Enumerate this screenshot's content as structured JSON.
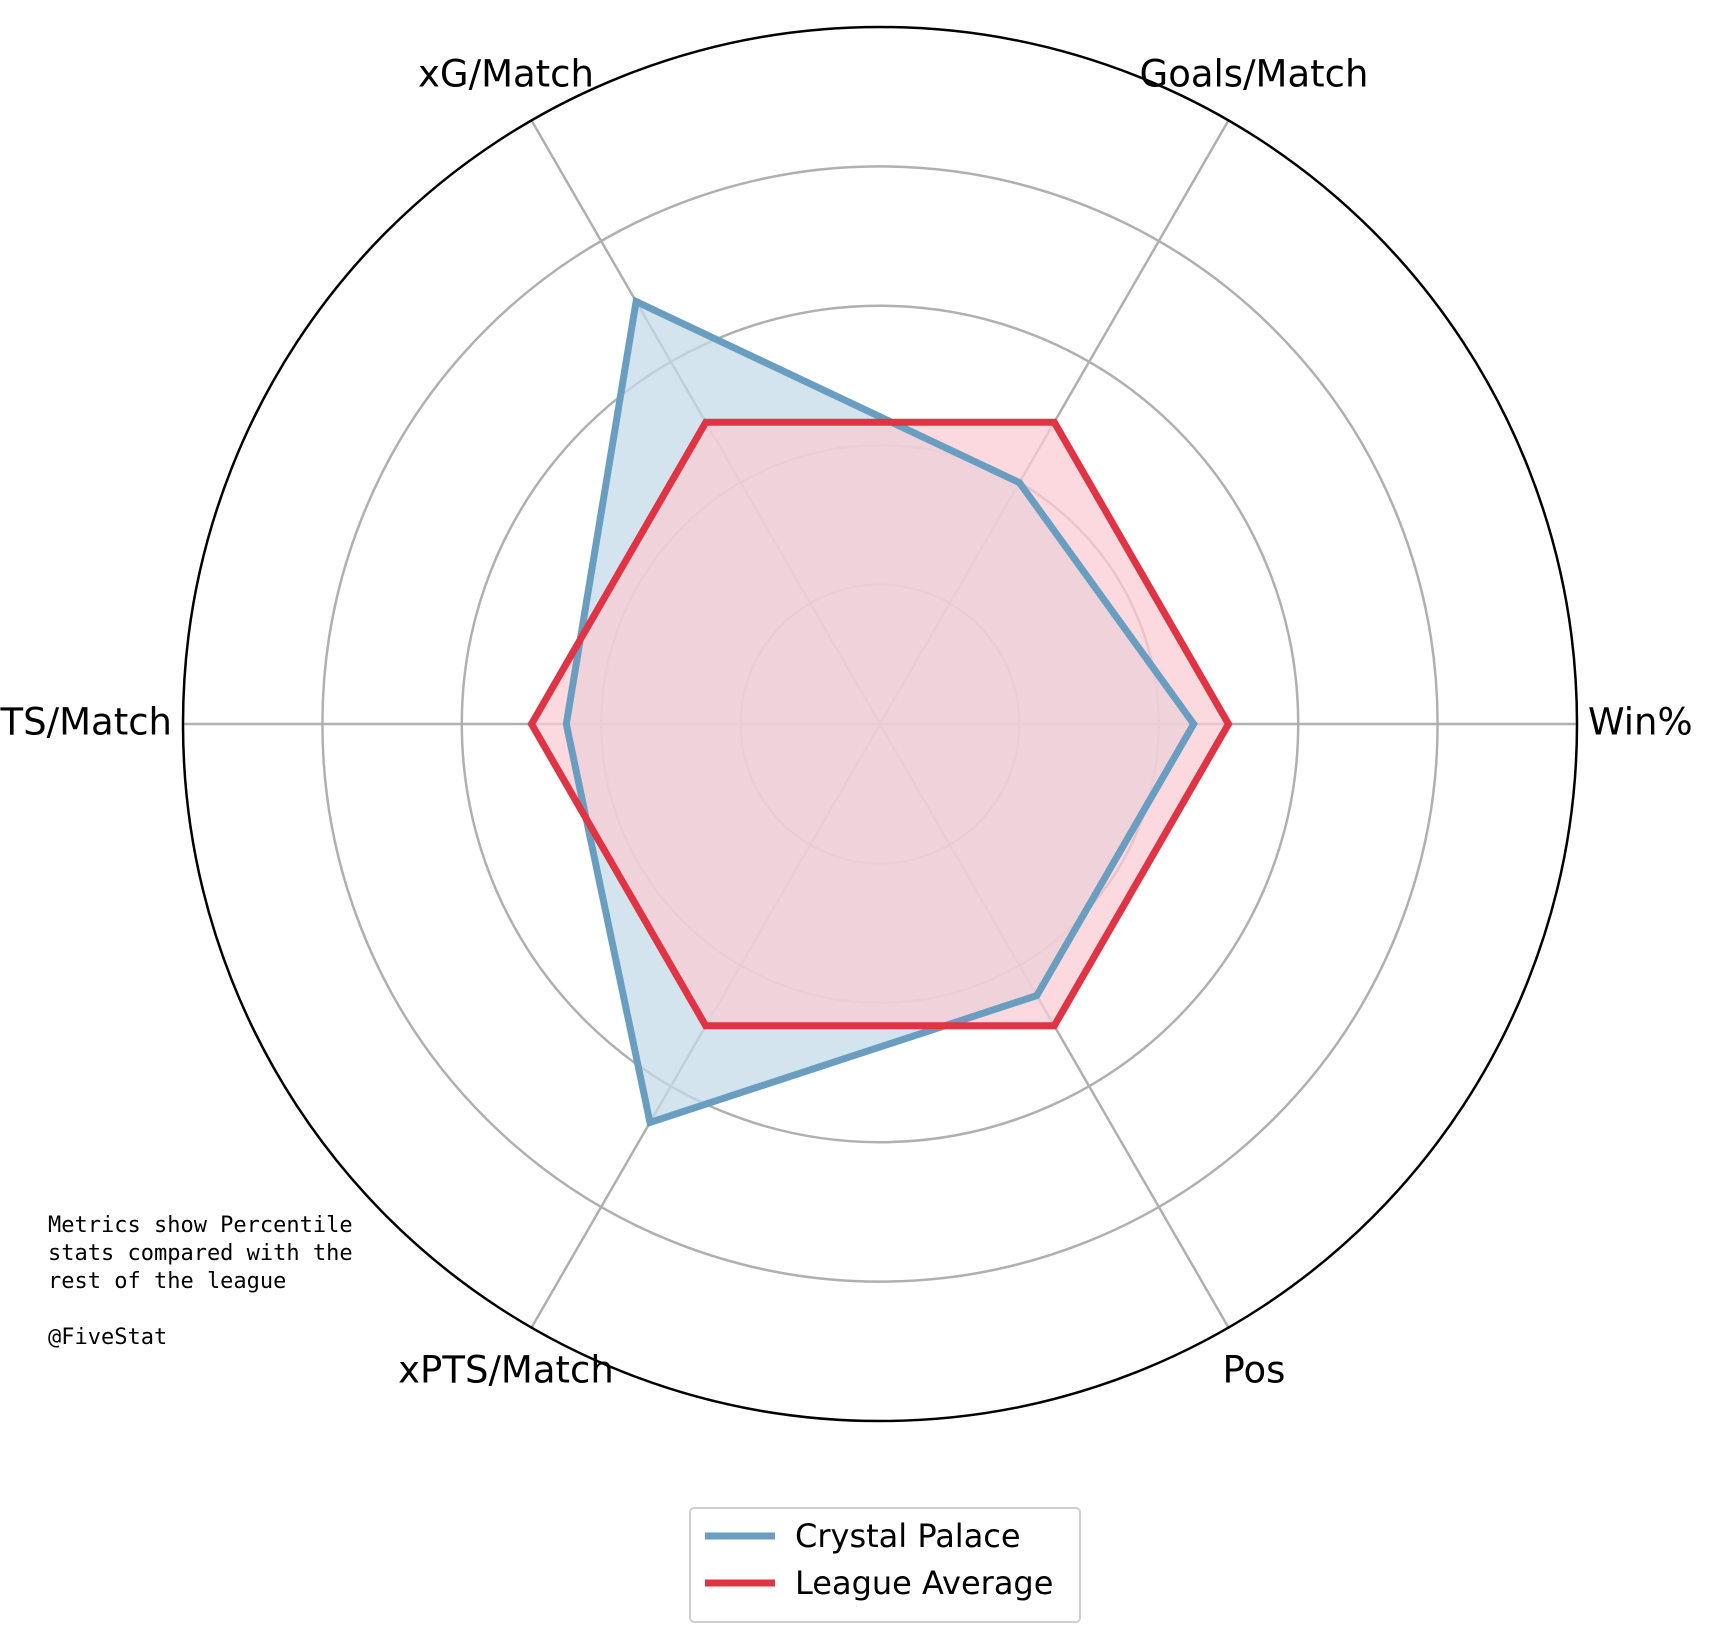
{
  "chart_data": {
    "type": "radar",
    "axes": [
      "Win%",
      "Goals/Match",
      "xG/Match",
      "PTS/Match",
      "xPTS/Match",
      "Pos"
    ],
    "rlim": [
      0,
      100
    ],
    "grid": true,
    "series": [
      {
        "name": "Crystal Palace",
        "color": "#6a9ec0",
        "fill": "#c6dbea",
        "values": [
          45,
          40,
          70,
          45,
          66,
          45
        ]
      },
      {
        "name": "League Average",
        "color": "#e03445",
        "fill": "#f9ccd3",
        "values": [
          50,
          50,
          50,
          50,
          50,
          50
        ]
      }
    ],
    "legend_position": "bottom-center",
    "annotation": {
      "lines": [
        "Metrics show Percentile",
        "stats compared with the",
        "rest of the league",
        "",
        "@FiveStat"
      ]
    }
  }
}
